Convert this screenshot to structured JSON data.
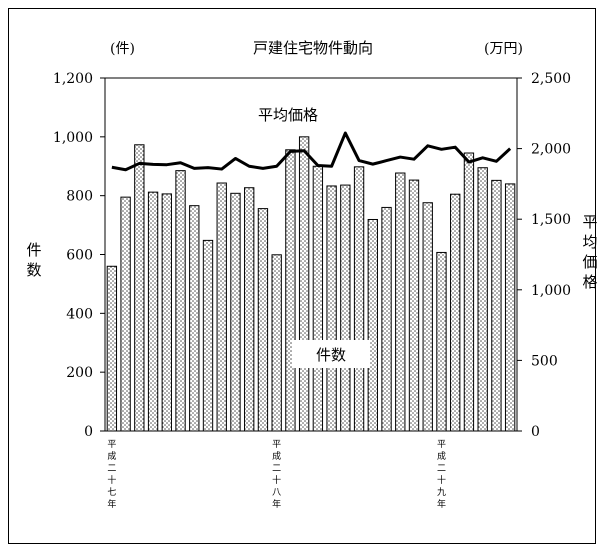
{
  "chart_data": {
    "type": "bar+line",
    "title": "戸建住宅物件動向",
    "left_unit": "(件)",
    "right_unit": "(万円)",
    "left_axis_label": "件数",
    "right_axis_label": "平均価格",
    "left_ylim": [
      0,
      1200
    ],
    "right_ylim": [
      0,
      2500
    ],
    "left_ticks": [
      "1,200",
      "1,000",
      "800",
      "600",
      "400",
      "200",
      "0"
    ],
    "right_ticks": [
      "2,500",
      "2,000",
      "1,500",
      "1,000",
      "500",
      "0"
    ],
    "x_labels": [
      "平成二十七年",
      "平成二十八年",
      "平成二十九年"
    ],
    "x_label_positions": [
      0,
      12,
      24
    ],
    "series": [
      {
        "name": "件数",
        "type": "bar",
        "axis": "left",
        "values": [
          560,
          795,
          973,
          812,
          806,
          885,
          766,
          648,
          843,
          808,
          827,
          756,
          599,
          956,
          1000,
          900,
          833,
          836,
          898,
          719,
          760,
          877,
          853,
          776,
          607,
          805,
          945,
          895,
          852,
          840
        ]
      },
      {
        "name": "平均価格",
        "type": "line",
        "axis": "right",
        "values": [
          1868,
          1850,
          1895,
          1888,
          1886,
          1900,
          1860,
          1865,
          1855,
          1930,
          1875,
          1860,
          1875,
          1980,
          1985,
          1880,
          1875,
          2110,
          1915,
          1890,
          1915,
          1940,
          1925,
          2020,
          1995,
          2010,
          1905,
          1935,
          1910,
          2000
        ]
      }
    ],
    "annotations": {
      "bar_series_label": "件数",
      "line_series_label": "平均価格"
    }
  }
}
